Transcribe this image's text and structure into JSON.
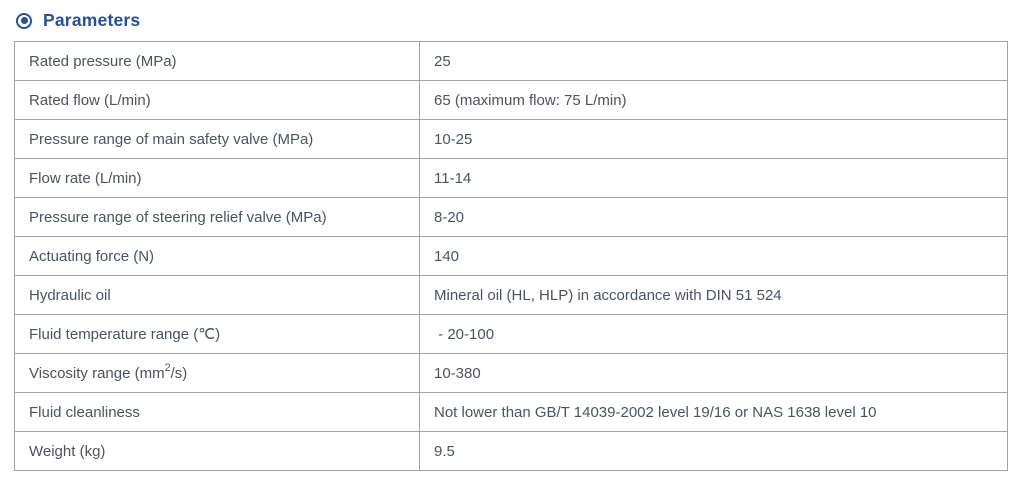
{
  "header": {
    "title": "Parameters",
    "icon": "radio-bullet-icon"
  },
  "ui_colors": {
    "accent": "#27518f",
    "table_border": "#a3a3a3",
    "table_text": "#4a545f",
    "background": "#ffffff"
  },
  "table": {
    "rows": [
      {
        "label": "Rated pressure (MPa)",
        "value": "25"
      },
      {
        "label": "Rated flow (L/min)",
        "value": "65 (maximum flow: 75 L/min)"
      },
      {
        "label": "Pressure range of main safety valve (MPa)",
        "value": "10-25"
      },
      {
        "label": "Flow rate (L/min)",
        "value": "11-14"
      },
      {
        "label": "Pressure range of steering relief valve (MPa)",
        "value": "8-20"
      },
      {
        "label": "Actuating force (N)",
        "value": "140"
      },
      {
        "label": "Hydraulic oil",
        "value": "Mineral oil (HL, HLP) in accordance with DIN 51 524"
      },
      {
        "label": "Fluid temperature range (℃)",
        "value": " - 20-100"
      },
      {
        "label_pre": "Viscosity range (mm",
        "label_sup": "2",
        "label_post": "/s)",
        "value": "10-380"
      },
      {
        "label": "Fluid cleanliness",
        "value": "Not lower than GB/T 14039-2002 level 19/16 or NAS 1638 level 10"
      },
      {
        "label": "Weight (kg)",
        "value": "9.5"
      }
    ]
  }
}
